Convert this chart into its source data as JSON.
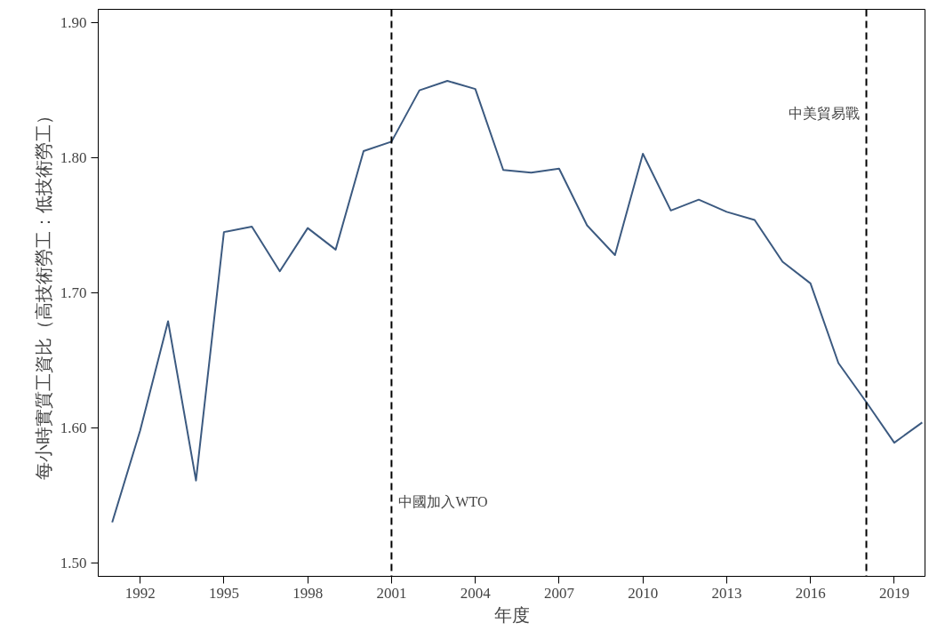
{
  "chart_data": {
    "type": "line",
    "xlabel": "年度",
    "ylabel": "每小時實質工資比（高技術勞工：低技術勞工）",
    "x": [
      1991,
      1992,
      1993,
      1994,
      1995,
      1996,
      1997,
      1998,
      1999,
      2000,
      2001,
      2002,
      2003,
      2004,
      2005,
      2006,
      2007,
      2008,
      2009,
      2010,
      2011,
      2012,
      2013,
      2014,
      2015,
      2016,
      2017,
      2018,
      2019,
      2020
    ],
    "series": [
      {
        "color": "#3c5a80",
        "values": [
          1.53,
          1.598,
          1.679,
          1.561,
          1.745,
          1.749,
          1.716,
          1.748,
          1.732,
          1.805,
          1.812,
          1.85,
          1.857,
          1.851,
          1.791,
          1.789,
          1.792,
          1.75,
          1.728,
          1.803,
          1.761,
          1.769,
          1.76,
          1.754,
          1.723,
          1.707,
          1.648,
          1.619,
          1.589,
          1.604
        ]
      }
    ],
    "xlim": [
      1990.5,
      2020.1
    ],
    "ylim": [
      1.49,
      1.91
    ],
    "xticks": [
      1992,
      1995,
      1998,
      2001,
      2004,
      2007,
      2010,
      2013,
      2016,
      2019
    ],
    "yticks": [
      {
        "value": 1.5,
        "label": "1.50"
      },
      {
        "value": 1.6,
        "label": "1.60"
      },
      {
        "value": 1.7,
        "label": "1.70"
      },
      {
        "value": 1.8,
        "label": "1.80"
      },
      {
        "value": 1.9,
        "label": "1.90"
      }
    ],
    "ref_lines": [
      {
        "axis": "x",
        "value": 2001,
        "color": "#000000",
        "line_style": "dashed"
      },
      {
        "axis": "x",
        "value": 2018,
        "color": "#000000",
        "line_style": "dashed"
      }
    ],
    "annotations": [
      {
        "text": "中國加入WTO",
        "x": 2001,
        "y": 1.545
      },
      {
        "text": "中美貿易戰",
        "x": 2018,
        "y": 1.833
      }
    ],
    "marker": "none",
    "line_style": "solid"
  }
}
